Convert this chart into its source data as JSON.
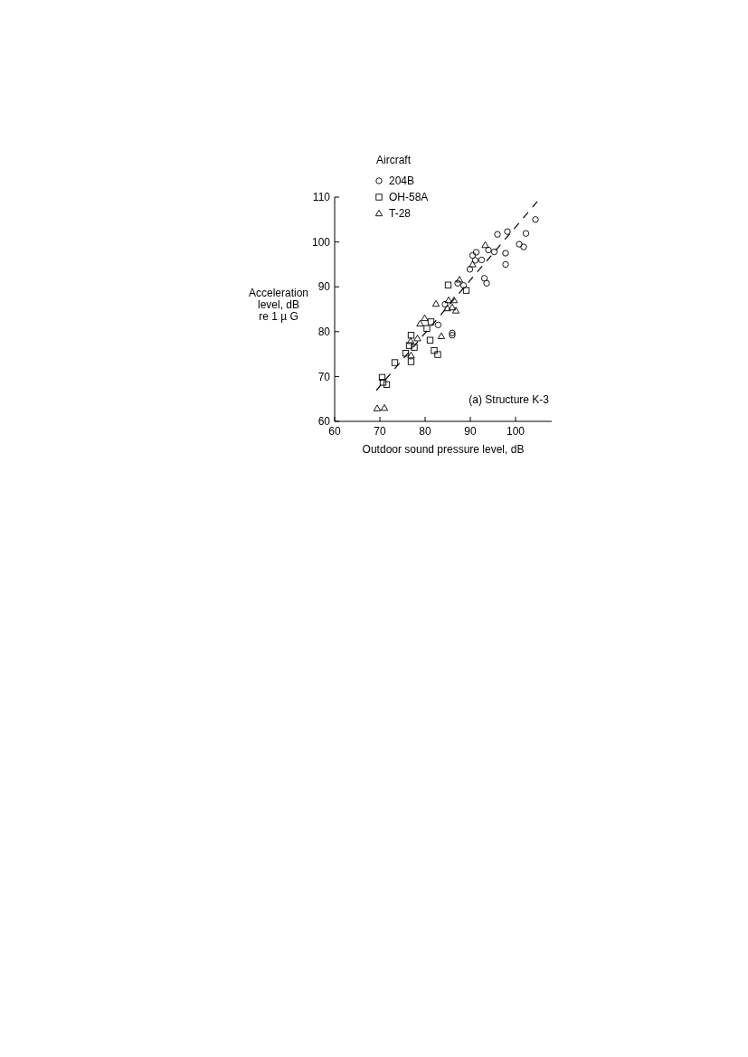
{
  "chart_data": {
    "type": "scatter",
    "xlabel": "Outdoor sound pressure level, dB",
    "ylabel": "Acceleration level, dB re 1 µ G",
    "legend_title": "Aircraft",
    "legend": "top left",
    "xlim": [
      60,
      108
    ],
    "ylim": [
      60,
      110
    ],
    "xticks": [
      60,
      70,
      80,
      90,
      100
    ],
    "yticks": [
      60,
      70,
      80,
      90,
      100,
      110
    ],
    "grid": false,
    "annotations": [
      "(a) Structure K-3"
    ],
    "series": [
      {
        "name": "204B",
        "color": "#000000",
        "marker": "circle",
        "x": [
          104.4,
          102.3,
          98.2,
          96.0,
          100.8,
          101.8,
          97.8,
          97.8,
          95.3,
          94.0,
          90.5,
          91.3,
          91.1,
          92.5,
          89.9,
          93.1,
          93.6,
          87.2,
          88.5,
          82.9,
          86.0,
          86.0,
          84.4
        ],
        "values": [
          105.0,
          101.9,
          102.3,
          101.7,
          99.5,
          98.9,
          97.5,
          95.0,
          97.8,
          98.2,
          97.0,
          97.7,
          95.9,
          96.0,
          93.9,
          91.9,
          90.8,
          90.8,
          90.3,
          81.5,
          79.7,
          79.2,
          86.1
        ]
      },
      {
        "name": "OH-58A",
        "color": "#000000",
        "marker": "square",
        "x": [
          85.1,
          89.1,
          81.3,
          80.4,
          76.9,
          81.1,
          76.5,
          77.6,
          75.7,
          76.9,
          82.0,
          82.8,
          73.3,
          70.5,
          70.7,
          71.5
        ],
        "values": [
          90.4,
          89.2,
          82.2,
          80.7,
          79.2,
          78.1,
          76.9,
          76.5,
          75.2,
          73.3,
          75.8,
          74.9,
          73.1,
          69.8,
          68.7,
          68.2
        ]
      },
      {
        "name": "T-28",
        "color": "#000000",
        "marker": "triangle",
        "x": [
          93.3,
          90.5,
          87.6,
          82.4,
          85.2,
          86.4,
          84.9,
          86.0,
          86.8,
          79.9,
          78.9,
          78.3,
          76.8,
          76.9,
          83.6,
          69.4,
          71.0
        ],
        "values": [
          99.3,
          95.0,
          91.6,
          86.2,
          87.0,
          87.0,
          85.2,
          85.4,
          84.7,
          83.0,
          81.8,
          78.5,
          77.9,
          74.7,
          79.0,
          62.9,
          63.0
        ]
      },
      {
        "type": "line",
        "color": "#000000",
        "line_style": "dashed",
        "marker": "none",
        "x": [
          69.2,
          104.8
        ],
        "values": [
          66.9,
          109.0
        ]
      }
    ]
  }
}
